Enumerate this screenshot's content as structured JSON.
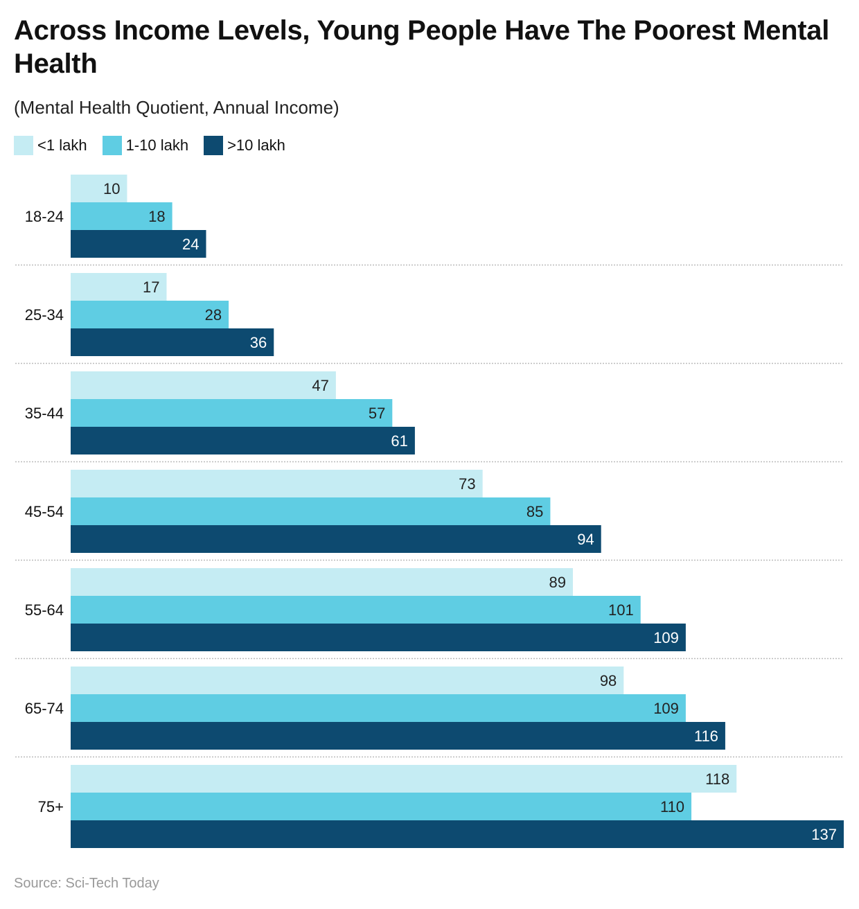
{
  "title": "Across Income Levels, Young People Have The Poorest Mental Health",
  "subtitle": "(Mental Health Quotient, Annual Income)",
  "source": "Source: Sci-Tech Today",
  "chart_data": {
    "type": "bar",
    "orientation": "horizontal",
    "categories": [
      "18-24",
      "25-34",
      "35-44",
      "45-54",
      "55-64",
      "65-74",
      "75+"
    ],
    "series": [
      {
        "name": "<1 lakh",
        "color": "#c5ecf3",
        "values": [
          10,
          17,
          47,
          73,
          89,
          98,
          118
        ]
      },
      {
        "name": "1-10 lakh",
        "color": "#5fcde3",
        "values": [
          18,
          28,
          57,
          85,
          101,
          109,
          110
        ]
      },
      {
        "name": ">10 lakh",
        "color": "#0d4a70",
        "values": [
          24,
          36,
          61,
          94,
          109,
          116,
          137
        ]
      }
    ],
    "xlim": [
      0,
      137
    ],
    "legend": "top-left",
    "data_labels": true,
    "grid": false
  }
}
